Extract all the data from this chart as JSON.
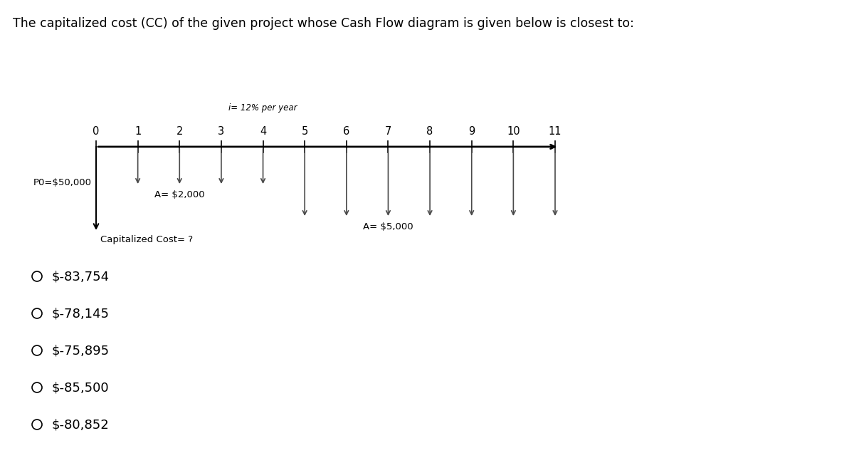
{
  "title": "The capitalized cost (CC) of the given project whose Cash Flow diagram is given below is closest to:",
  "title_fontsize": 12.5,
  "interest_label": "i= 12% per year",
  "timeline_periods": [
    0,
    1,
    2,
    3,
    4,
    5,
    6,
    7,
    8,
    9,
    10,
    11
  ],
  "small_arrows_periods": [
    1,
    2,
    3,
    4
  ],
  "large_arrows_periods": [
    5,
    6,
    7,
    8,
    9,
    10,
    11
  ],
  "A_small_label": "A= $2,000",
  "A_large_label": "A= $5,000",
  "P0_label": "P0=$50,000",
  "CC_label": "Capitalized Cost= ?",
  "choices": [
    "$-83,754",
    "$-78,145",
    "$-75,895",
    "$-85,500",
    "$-80,852"
  ],
  "bg_color": "#ffffff",
  "text_color": "#000000",
  "line_color": "#000000",
  "arrow_color": "#4a4a4a",
  "choice_fontsize": 13,
  "label_fontsize": 9.5,
  "period_fontsize": 10.5,
  "interest_fontsize": 8.5
}
